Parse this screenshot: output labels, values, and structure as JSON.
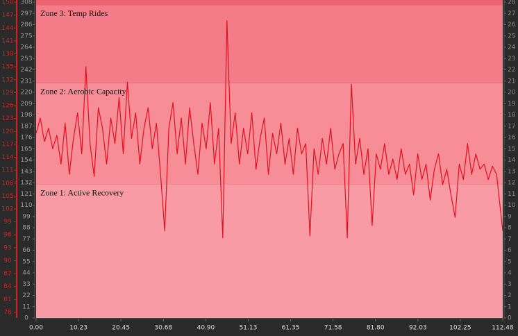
{
  "chart_data": {
    "type": "line",
    "x": [
      0,
      1,
      2,
      3,
      4,
      5,
      6,
      7,
      8,
      9,
      10,
      11,
      12,
      13,
      14,
      15,
      16,
      17,
      18,
      19,
      20,
      21,
      22,
      23,
      24,
      25,
      26,
      27,
      28,
      29,
      30,
      31,
      32,
      33,
      34,
      35,
      36,
      37,
      38,
      39,
      40,
      41,
      42,
      43,
      44,
      45,
      46,
      47,
      48,
      49,
      50,
      51,
      52,
      53,
      54,
      55,
      56,
      57,
      58,
      59,
      60,
      61,
      62,
      63,
      64,
      65,
      66,
      67,
      68,
      69,
      70,
      71,
      72,
      73,
      74,
      75,
      76,
      77,
      78,
      79,
      80,
      81,
      82,
      83,
      84,
      85,
      86,
      87,
      88,
      89,
      90,
      91,
      92,
      93,
      94,
      95,
      96,
      97,
      98,
      99,
      100,
      101,
      102,
      103,
      104,
      105,
      106,
      107,
      108,
      109,
      110,
      111,
      112.48
    ],
    "series": [
      {
        "color": "#e0101e",
        "values": [
          180,
          195,
          172,
          185,
          165,
          178,
          150,
          190,
          140,
          175,
          200,
          160,
          245,
          170,
          138,
          205,
          185,
          150,
          195,
          170,
          215,
          160,
          230,
          175,
          200,
          150,
          185,
          205,
          165,
          190,
          140,
          85,
          185,
          210,
          160,
          195,
          150,
          205,
          170,
          140,
          190,
          165,
          210,
          150,
          185,
          78,
          290,
          170,
          200,
          150,
          185,
          160,
          200,
          145,
          175,
          195,
          140,
          180,
          160,
          190,
          150,
          175,
          140,
          185,
          160,
          170,
          80,
          165,
          140,
          175,
          150,
          185,
          145,
          160,
          170,
          78,
          228,
          150,
          175,
          140,
          165,
          90,
          160,
          145,
          170,
          140,
          155,
          135,
          165,
          140,
          150,
          120,
          160,
          135,
          150,
          115,
          145,
          160,
          130,
          145,
          120,
          98,
          150,
          135,
          170,
          140,
          160,
          145,
          150,
          135,
          148,
          140,
          85
        ]
      }
    ],
    "xlim": [
      0,
      112.48
    ],
    "xticks": [
      {
        "value": 0,
        "label": "0.00"
      },
      10.23,
      20.45,
      30.68,
      {
        "value": 40.9,
        "label": "40.90"
      },
      51.13,
      61.35,
      71.58,
      {
        "value": 81.8,
        "label": "81.80"
      },
      92.03,
      102.25,
      112.48
    ],
    "ylim": [
      0,
      308
    ],
    "yticks": [
      0,
      11,
      22,
      33,
      44,
      55,
      66,
      77,
      88,
      99,
      110,
      121,
      132,
      143,
      154,
      165,
      176,
      187,
      198,
      209,
      220,
      231,
      242,
      253,
      264,
      275,
      286,
      297,
      308
    ],
    "y2lim": [
      0,
      28
    ],
    "y2ticks": [
      0,
      1,
      2,
      3,
      4,
      5,
      6,
      7,
      8,
      9,
      10,
      11,
      12,
      13,
      14,
      15,
      16,
      17,
      18,
      19,
      20,
      21,
      22,
      23,
      24,
      25,
      26,
      27,
      28
    ],
    "y3lim": [
      76.7,
      150.5
    ],
    "y3ticks": [
      78,
      81,
      84,
      87,
      90,
      93,
      96,
      99,
      102,
      105,
      108,
      111,
      114,
      117,
      120,
      123,
      126,
      129,
      132,
      135,
      138,
      141,
      144,
      147,
      150
    ],
    "y3color": "#d42020",
    "zones": [
      {
        "name": "Zone 1: Active Recovery",
        "range": [
          0,
          130
        ],
        "color": "#f99ba4"
      },
      {
        "name": "Zone 2: Aerobic Capacity",
        "range": [
          130,
          229
        ],
        "color": "#f78d97"
      },
      {
        "name": "Zone 3: Temp Rides",
        "range": [
          229,
          305
        ],
        "color": "#f47b88"
      },
      {
        "range": [
          305,
          310
        ],
        "color": "#ef6472"
      }
    ]
  }
}
